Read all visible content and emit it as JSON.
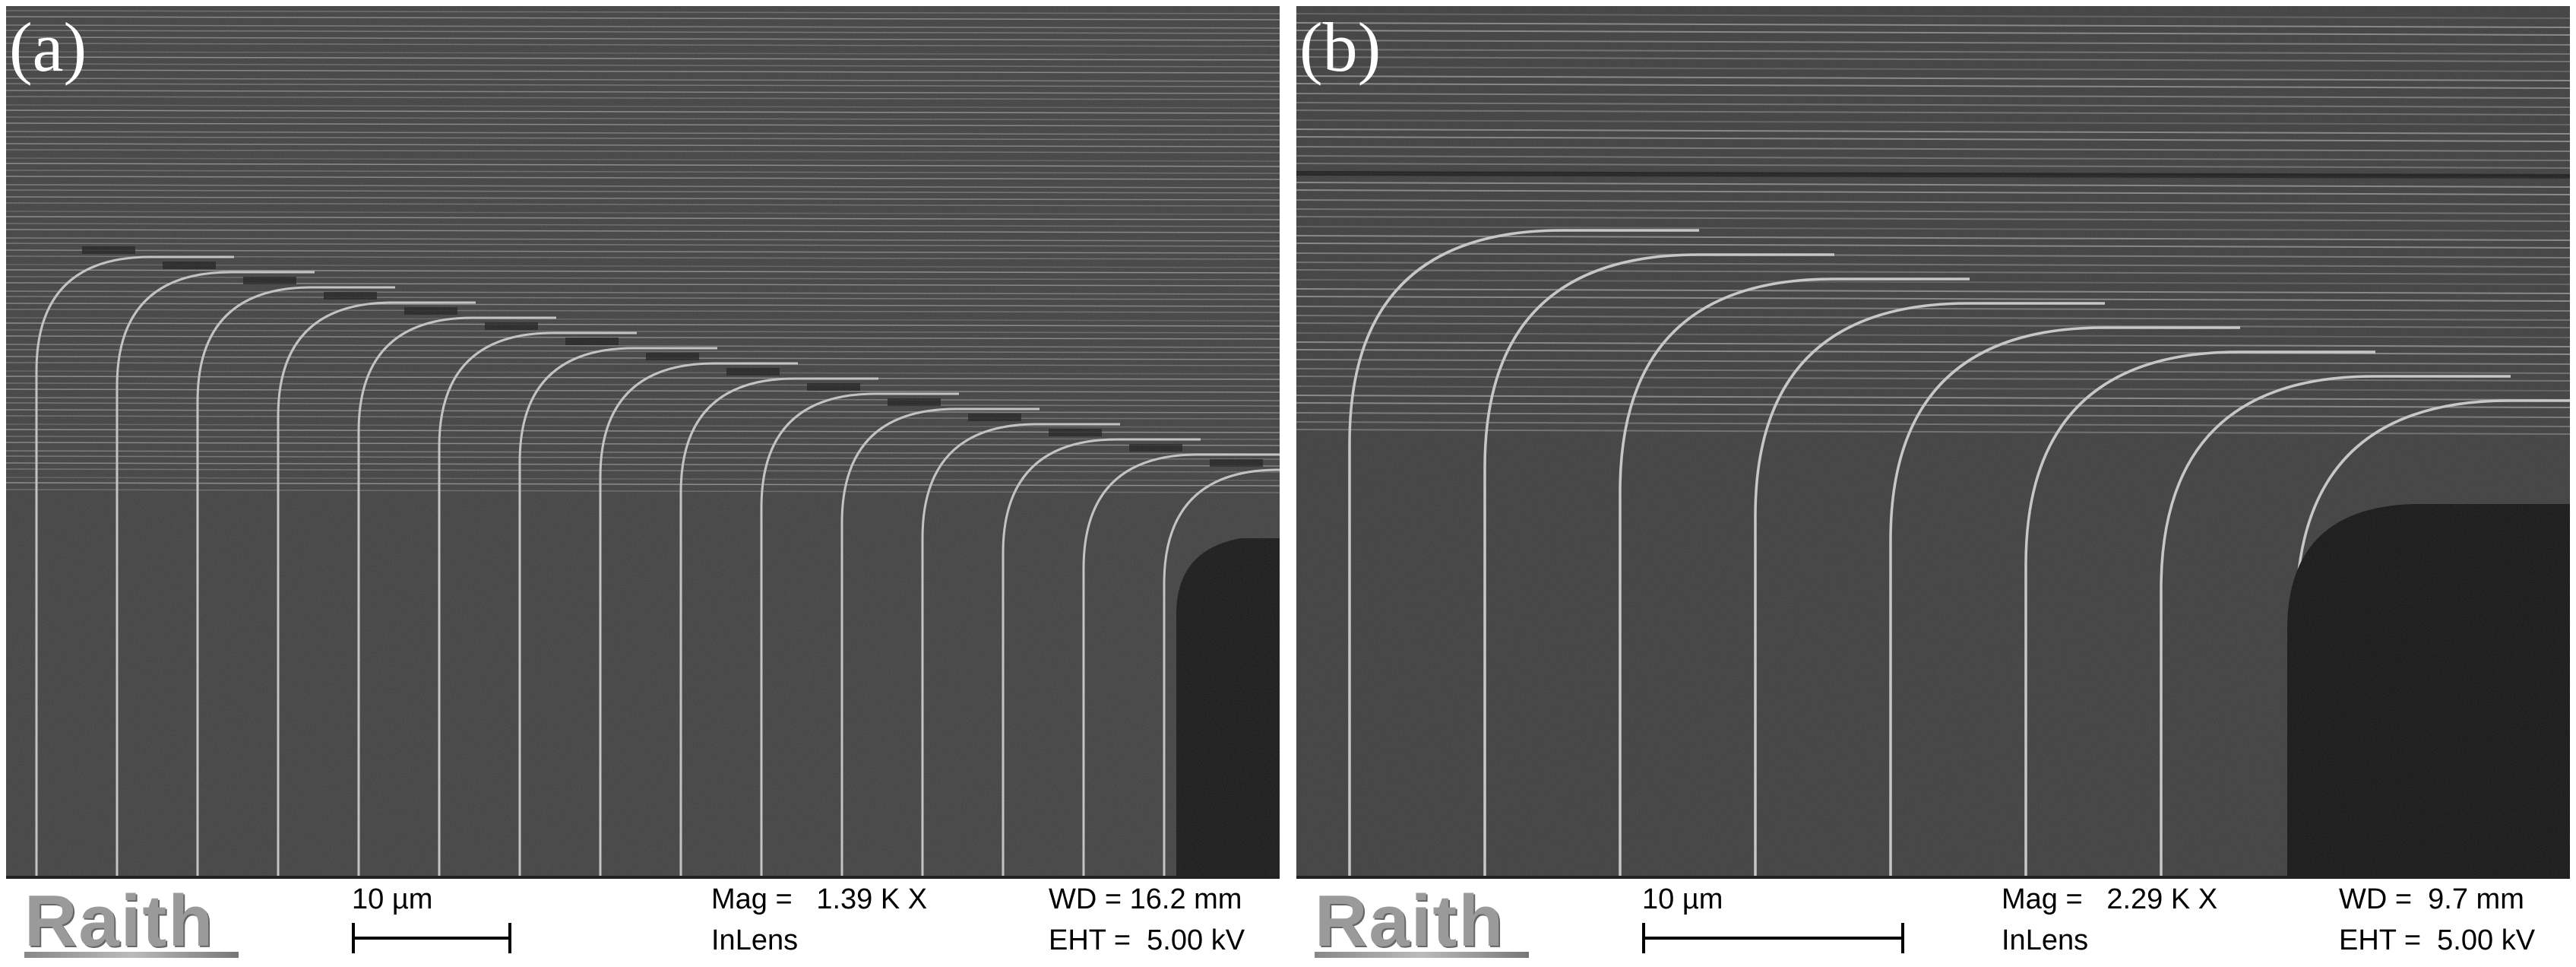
{
  "panels": [
    {
      "id": "a",
      "label": "(a)",
      "logo": "Raith",
      "scale_label": "10 µm",
      "mag": "Mag =   1.39 K X",
      "detector": "InLens",
      "wd": "WD = 16.2 mm",
      "eht": "EHT =  5.00 kV"
    },
    {
      "id": "b",
      "label": "(b)",
      "logo": "Raith",
      "scale_label": "10 µm",
      "mag": "Mag =   2.29 K X",
      "detector": "InLens",
      "wd": "WD =  9.7 mm",
      "eht": "EHT =  5.00 kV"
    }
  ],
  "colors": {
    "substrate": "#3c3c3c",
    "waveguide_edge": "#bdbdbd",
    "dark_region": "#161616",
    "databar_bg": "#ffffff"
  }
}
